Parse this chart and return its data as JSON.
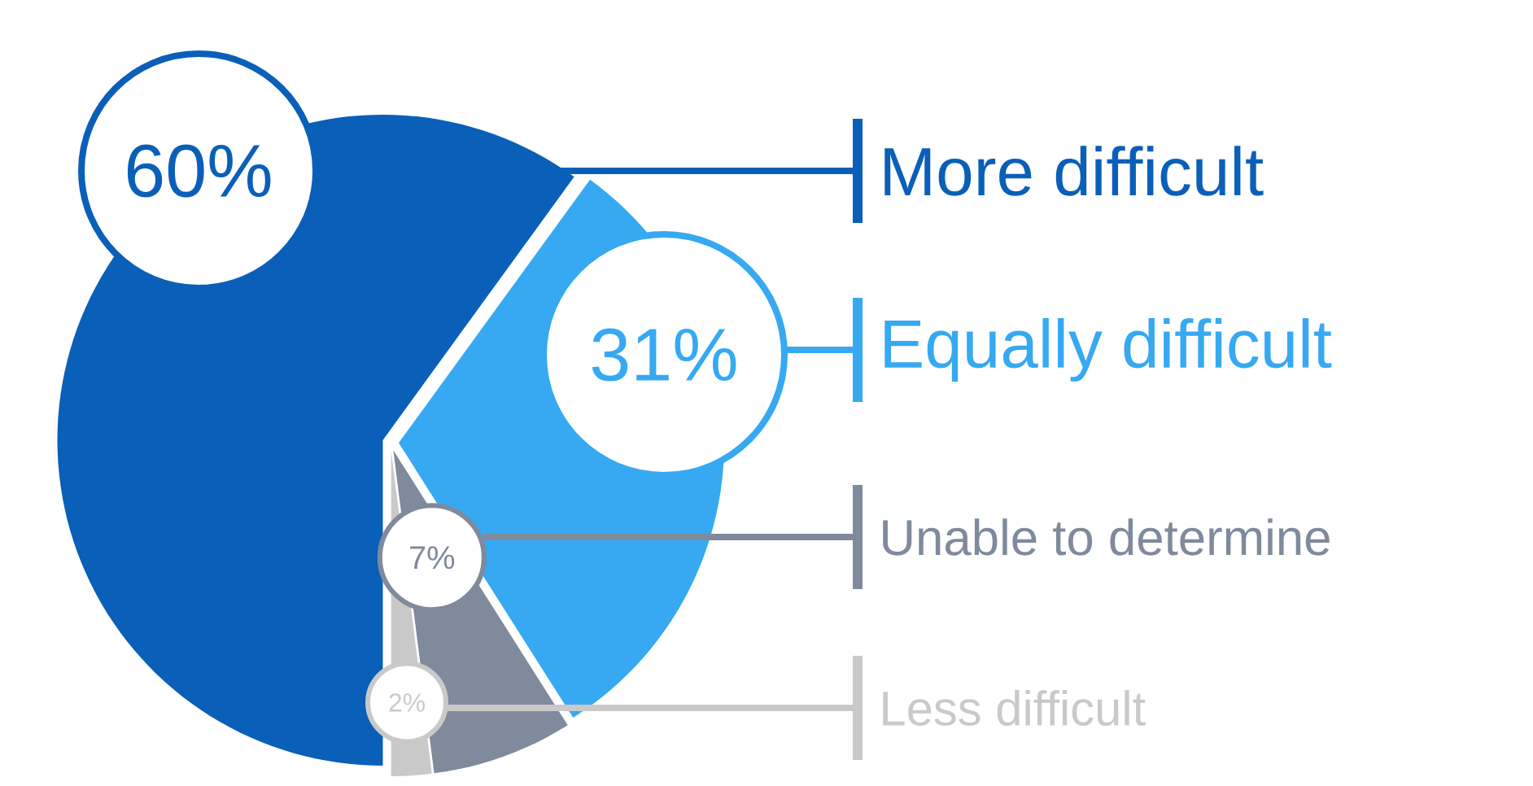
{
  "chart_data": {
    "type": "pie",
    "categories": [
      "More difficult",
      "Equally  difficult",
      "Unable to determine",
      "Less difficult"
    ],
    "values": [
      60,
      31,
      7,
      2
    ],
    "value_labels": [
      "60%",
      "31%",
      "7%",
      "2%"
    ],
    "colors": [
      "#0a5fb8",
      "#36a9f2",
      "#7f8a9c",
      "#c9c9c9"
    ],
    "legend": "right"
  }
}
